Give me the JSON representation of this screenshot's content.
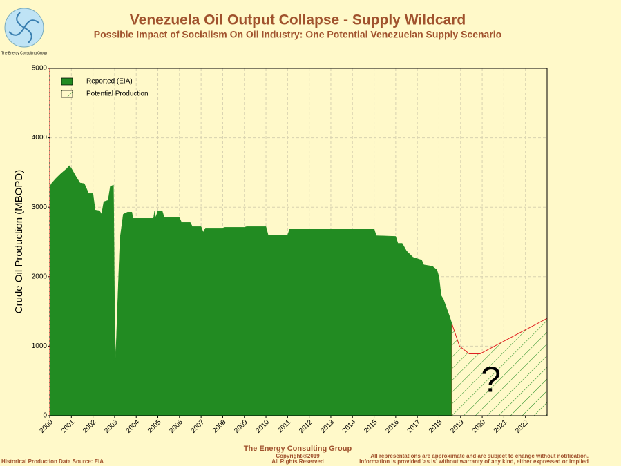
{
  "chart_data": {
    "type": "area",
    "title": "Venezuela Oil Output Collapse - Supply Wildcard",
    "subtitle": "Possible Impact of Socialism On Oil Industry: One Potential Venezuelan Supply Scenario",
    "logo_text": "The Energy Consulting Group",
    "y_label": "Crude Oil Production (MBOPD)",
    "annotation": "?",
    "footer_title": "The Energy Consulting Group",
    "copyright": "Copyright@2019",
    "rights": "All Rights Reserved",
    "source": "Historical Production Data Source: EIA",
    "disclaimer": [
      "All representations are approximate and are subject to change without notification.",
      "Information is provided 'as is' without warranty of any kind, either expressed or implied"
    ],
    "xlim": [
      2000,
      2023
    ],
    "ylim": [
      0,
      5000
    ],
    "xticks": [
      2000,
      2001,
      2002,
      2003,
      2004,
      2005,
      2006,
      2007,
      2008,
      2009,
      2010,
      2011,
      2012,
      2013,
      2014,
      2015,
      2016,
      2017,
      2018,
      2019,
      2020,
      2021,
      2022
    ],
    "yticks": [
      0,
      1000,
      2000,
      3000,
      4000,
      5000
    ],
    "grid": true,
    "legend": "upper left",
    "series": [
      {
        "name": "Reported (EIA)",
        "color": "#228b22",
        "style": "solid",
        "x": [
          2000,
          2000.1,
          2000.3,
          2000.5,
          2000.8,
          2000.9,
          2001,
          2001.2,
          2001.4,
          2001.6,
          2001.8,
          2002,
          2002.1,
          2002.3,
          2002.4,
          2002.5,
          2002.7,
          2002.8,
          2002.95,
          2003,
          2003.05,
          2003.15,
          2003.25,
          2003.4,
          2003.6,
          2003.8,
          2003.85,
          2004.8,
          2004.85,
          2004.9,
          2005,
          2005.2,
          2005.3,
          2006,
          2006.1,
          2006.5,
          2006.6,
          2007,
          2007.1,
          2007.2,
          2008,
          2008.1,
          2009,
          2009.1,
          2010,
          2010.1,
          2011,
          2011.1,
          2015,
          2015.1,
          2016,
          2016.1,
          2016.3,
          2016.5,
          2016.8,
          2017.2,
          2017.3,
          2017.7,
          2017.9,
          2018,
          2018.1,
          2018.2,
          2018.35,
          2018.5,
          2018.6
        ],
        "values": [
          3300,
          3350,
          3420,
          3480,
          3560,
          3600,
          3560,
          3450,
          3350,
          3340,
          3200,
          3200,
          2960,
          2950,
          2900,
          3080,
          3100,
          3300,
          3320,
          1500,
          820,
          1700,
          2550,
          2900,
          2930,
          2930,
          2840,
          2840,
          2950,
          2850,
          2950,
          2950,
          2850,
          2850,
          2780,
          2780,
          2720,
          2720,
          2640,
          2700,
          2700,
          2710,
          2710,
          2720,
          2720,
          2600,
          2600,
          2690,
          2690,
          2590,
          2580,
          2480,
          2480,
          2370,
          2280,
          2240,
          2170,
          2150,
          2100,
          2000,
          1730,
          1680,
          1550,
          1420,
          1320
        ]
      },
      {
        "name": "Potential Production",
        "color": "#228b22",
        "style": "hatch",
        "x": [
          2018.6,
          2018.95,
          2019.4,
          2019.9,
          2023
        ],
        "values": [
          1320,
          1000,
          890,
          890,
          1400
        ]
      }
    ]
  }
}
